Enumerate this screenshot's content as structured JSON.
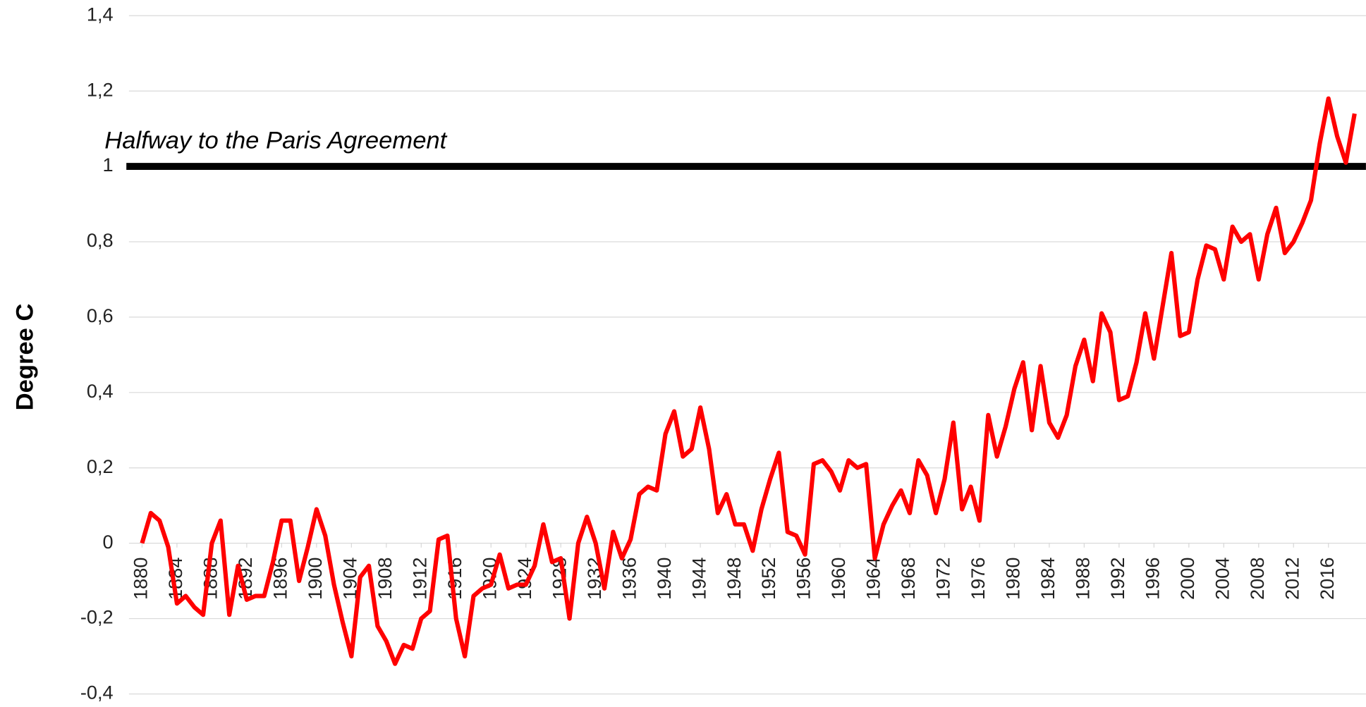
{
  "chart_data": {
    "type": "line",
    "y_label": "Degree C",
    "x": [
      1880,
      1881,
      1882,
      1883,
      1884,
      1885,
      1886,
      1887,
      1888,
      1889,
      1890,
      1891,
      1892,
      1893,
      1894,
      1895,
      1896,
      1897,
      1898,
      1899,
      1900,
      1901,
      1902,
      1903,
      1904,
      1905,
      1906,
      1907,
      1908,
      1909,
      1910,
      1911,
      1912,
      1913,
      1914,
      1915,
      1916,
      1917,
      1918,
      1919,
      1920,
      1921,
      1922,
      1923,
      1924,
      1925,
      1926,
      1927,
      1928,
      1929,
      1930,
      1931,
      1932,
      1933,
      1934,
      1935,
      1936,
      1937,
      1938,
      1939,
      1940,
      1941,
      1942,
      1943,
      1944,
      1945,
      1946,
      1947,
      1948,
      1949,
      1950,
      1951,
      1952,
      1953,
      1954,
      1955,
      1956,
      1957,
      1958,
      1959,
      1960,
      1961,
      1962,
      1963,
      1964,
      1965,
      1966,
      1967,
      1968,
      1969,
      1970,
      1971,
      1972,
      1973,
      1974,
      1975,
      1976,
      1977,
      1978,
      1979,
      1980,
      1981,
      1982,
      1983,
      1984,
      1985,
      1986,
      1987,
      1988,
      1989,
      1990,
      1991,
      1992,
      1993,
      1994,
      1995,
      1996,
      1997,
      1998,
      1999,
      2000,
      2001,
      2002,
      2003,
      2004,
      2005,
      2006,
      2007,
      2008,
      2009,
      2010,
      2011,
      2012,
      2013,
      2014,
      2015,
      2016,
      2017,
      2018,
      2019
    ],
    "series": [
      {
        "color": "#ff0000",
        "values": [
          0,
          0.08,
          0.06,
          -0.01,
          -0.16,
          -0.14,
          -0.17,
          -0.19,
          0.0,
          0.06,
          -0.19,
          -0.06,
          -0.15,
          -0.14,
          -0.14,
          -0.05,
          0.06,
          0.06,
          -0.1,
          -0.01,
          0.09,
          0.02,
          -0.11,
          -0.21,
          -0.3,
          -0.09,
          -0.06,
          -0.22,
          -0.26,
          -0.32,
          -0.27,
          -0.28,
          -0.2,
          -0.18,
          0.01,
          0.02,
          -0.2,
          -0.3,
          -0.14,
          -0.12,
          -0.11,
          -0.03,
          -0.12,
          -0.11,
          -0.11,
          -0.06,
          0.05,
          -0.05,
          -0.04,
          -0.2,
          0.0,
          0.07,
          0.0,
          -0.12,
          0.03,
          -0.04,
          0.01,
          0.13,
          0.15,
          0.14,
          0.29,
          0.35,
          0.23,
          0.25,
          0.36,
          0.25,
          0.08,
          0.13,
          0.05,
          0.05,
          -0.02,
          0.09,
          0.17,
          0.24,
          0.03,
          0.02,
          -0.03,
          0.21,
          0.22,
          0.19,
          0.14,
          0.22,
          0.2,
          0.21,
          -0.04,
          0.05,
          0.1,
          0.14,
          0.08,
          0.22,
          0.18,
          0.08,
          0.17,
          0.32,
          0.09,
          0.15,
          0.06,
          0.34,
          0.23,
          0.31,
          0.41,
          0.48,
          0.3,
          0.47,
          0.32,
          0.28,
          0.34,
          0.47,
          0.54,
          0.43,
          0.61,
          0.56,
          0.38,
          0.39,
          0.48,
          0.61,
          0.49,
          0.63,
          0.77,
          0.55,
          0.56,
          0.7,
          0.79,
          0.78,
          0.7,
          0.84,
          0.8,
          0.82,
          0.7,
          0.82,
          0.89,
          0.77,
          0.8,
          0.85,
          0.91,
          1.06,
          1.18,
          1.08,
          1.01,
          1.14
        ]
      }
    ],
    "xlim": [
      1878.5,
      2020.3
    ],
    "xticks": [
      1880,
      1884,
      1888,
      1892,
      1896,
      1900,
      1904,
      1908,
      1912,
      1916,
      1920,
      1924,
      1928,
      1932,
      1936,
      1940,
      1944,
      1948,
      1952,
      1956,
      1960,
      1964,
      1968,
      1972,
      1976,
      1980,
      1984,
      1988,
      1992,
      1996,
      2000,
      2004,
      2008,
      2012,
      2016
    ],
    "ylim": [
      -0.4,
      1.4
    ],
    "yticks": [
      {
        "value": -0.4,
        "label": "-0,4"
      },
      {
        "value": -0.2,
        "label": "-0,2"
      },
      0,
      {
        "value": 0.2,
        "label": "0,2"
      },
      {
        "value": 0.4,
        "label": "0,4"
      },
      {
        "value": 0.6,
        "label": "0,6"
      },
      {
        "value": 0.8,
        "label": "0,8"
      },
      1,
      {
        "value": 1.2,
        "label": "1,2"
      },
      {
        "value": 1.4,
        "label": "1,4"
      }
    ],
    "grid": true,
    "reference_line": {
      "value": 1,
      "label": "Halfway to the Paris Agreement",
      "color": "#000000"
    }
  }
}
